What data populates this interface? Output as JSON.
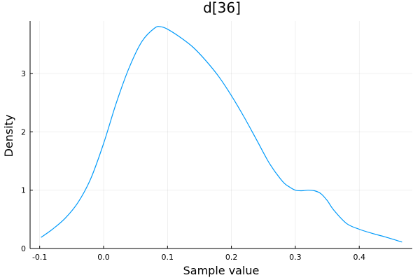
{
  "chart_data": {
    "type": "line",
    "title": "d[36]",
    "xlabel": "Sample value",
    "ylabel": "Density",
    "xlim": [
      -0.115,
      0.483
    ],
    "ylim": [
      0,
      3.9
    ],
    "xticks": [
      -0.1,
      0.0,
      0.1,
      0.2,
      0.3,
      0.4
    ],
    "xtick_labels": [
      "-0.1",
      "0.0",
      "0.1",
      "0.2",
      "0.3",
      "0.4"
    ],
    "yticks": [
      0,
      1,
      2,
      3
    ],
    "ytick_labels": [
      "0",
      "1",
      "2",
      "3"
    ],
    "grid": true,
    "legend": false,
    "line_color": "#009AFA",
    "series": [
      {
        "x": [
          -0.098,
          -0.08,
          -0.06,
          -0.04,
          -0.02,
          0.0,
          0.02,
          0.04,
          0.06,
          0.08,
          0.09,
          0.1,
          0.12,
          0.14,
          0.16,
          0.18,
          0.2,
          0.22,
          0.24,
          0.26,
          0.28,
          0.29,
          0.3,
          0.31,
          0.32,
          0.33,
          0.34,
          0.35,
          0.36,
          0.38,
          0.4,
          0.42,
          0.44,
          0.467
        ],
        "y": [
          0.19,
          0.33,
          0.52,
          0.79,
          1.2,
          1.8,
          2.5,
          3.1,
          3.55,
          3.78,
          3.8,
          3.76,
          3.62,
          3.45,
          3.22,
          2.95,
          2.62,
          2.25,
          1.85,
          1.45,
          1.15,
          1.06,
          1.0,
          0.99,
          1.0,
          0.99,
          0.94,
          0.82,
          0.66,
          0.43,
          0.33,
          0.26,
          0.2,
          0.11
        ]
      }
    ]
  }
}
